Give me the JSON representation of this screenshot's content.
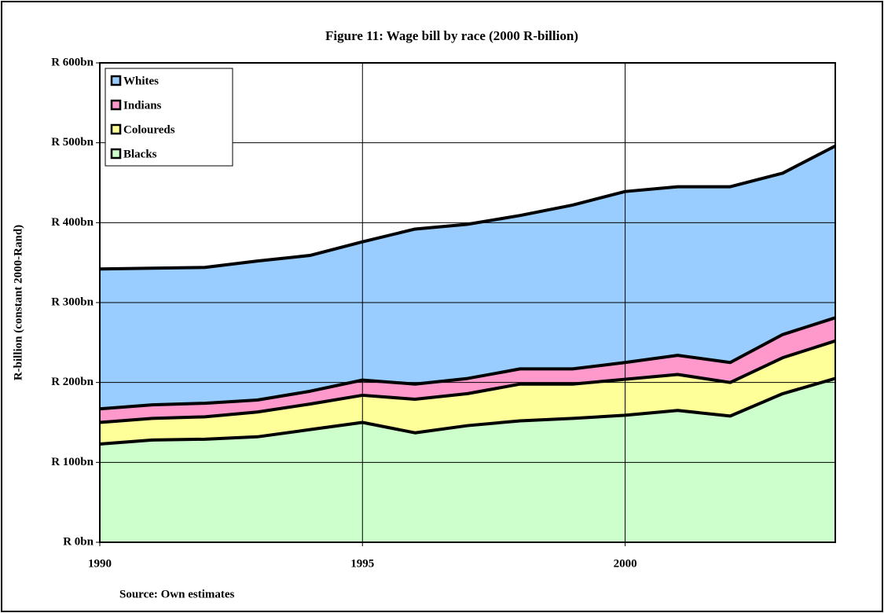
{
  "chart_data": {
    "type": "stacked-area",
    "title": "Figure 11: Wage bill by race  (2000 R-billion)",
    "y_label": "R-billion (constant 2000-Rand)",
    "source": "Source: Own estimates",
    "x": [
      1990,
      1991,
      1992,
      1993,
      1994,
      1995,
      1996,
      1997,
      1998,
      1999,
      2000,
      2001,
      2002,
      2003,
      2004
    ],
    "xlim": [
      1990,
      2004
    ],
    "xticks": [
      1990,
      1995,
      2000
    ],
    "ylim": [
      0,
      600
    ],
    "yticks": [
      {
        "value": 0,
        "label": "R 0bn"
      },
      {
        "value": 100,
        "label": "R 100bn"
      },
      {
        "value": 200,
        "label": "R 200bn"
      },
      {
        "value": 300,
        "label": "R 300bn"
      },
      {
        "value": 400,
        "label": "R 400bn"
      },
      {
        "value": 500,
        "label": "R 500bn"
      },
      {
        "value": 600,
        "label": "R 600bn"
      }
    ],
    "grid": true,
    "legend": "upper left",
    "series": [
      {
        "name": "Blacks",
        "color": "#ccffcc",
        "values": [
          123,
          128,
          129,
          132,
          141,
          150,
          137,
          146,
          152,
          155,
          159,
          165,
          158,
          186,
          205
        ]
      },
      {
        "name": "Coloureds",
        "color": "#ffff99",
        "values": [
          27,
          27,
          28,
          31,
          32,
          34,
          42,
          40,
          46,
          43,
          45,
          45,
          42,
          45,
          47
        ]
      },
      {
        "name": "Indians",
        "color": "#ff99cc",
        "values": [
          17,
          17,
          17,
          15,
          16,
          19,
          19,
          19,
          19,
          19,
          21,
          24,
          25,
          29,
          29
        ]
      },
      {
        "name": "Whites",
        "color": "#99ccff",
        "values": [
          175,
          171,
          170,
          174,
          170,
          173,
          194,
          193,
          192,
          205,
          214,
          211,
          220,
          202,
          215
        ]
      }
    ]
  }
}
